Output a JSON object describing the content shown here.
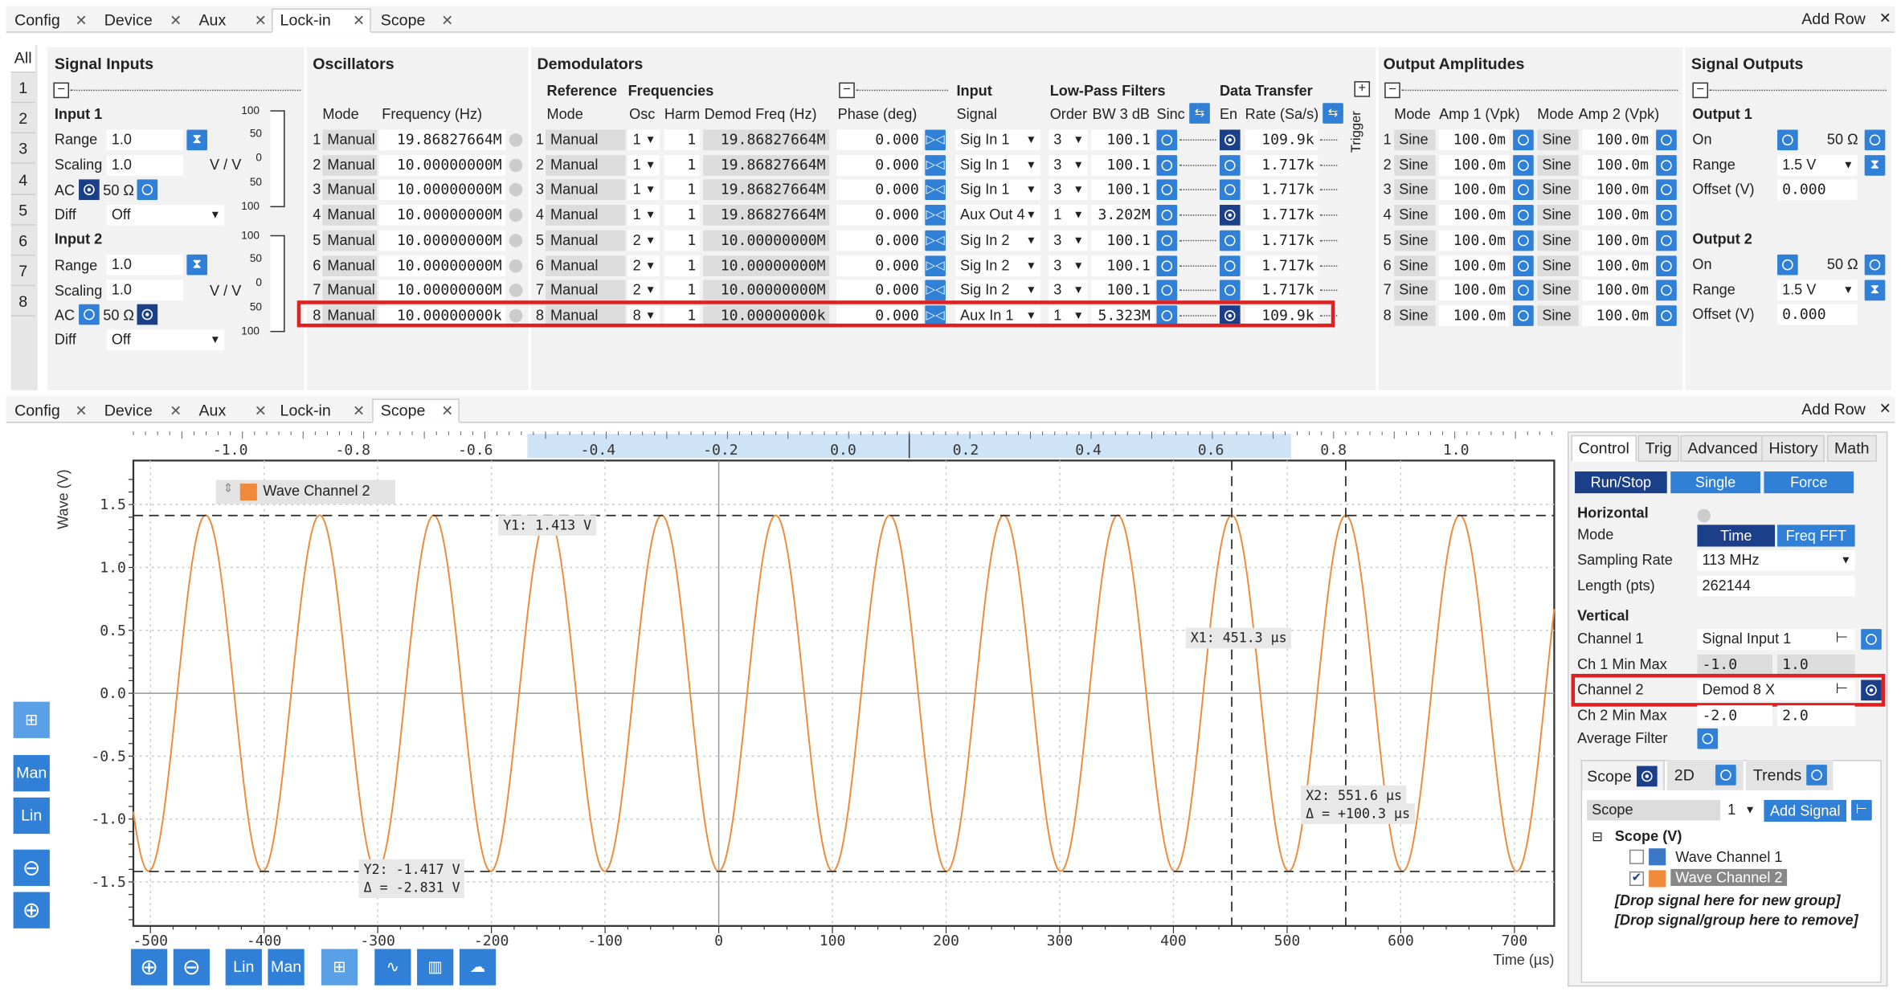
{
  "top_tabs": {
    "tabs": [
      "Config",
      "Device",
      "Aux",
      "Lock-in",
      "Scope"
    ],
    "active": "Lock-in",
    "add_row": "Add Row"
  },
  "side_tabs": [
    "All",
    "1",
    "2",
    "3",
    "4",
    "5",
    "6",
    "7",
    "8"
  ],
  "signal_inputs": {
    "title": "Signal Inputs",
    "input1": {
      "title": "Input 1",
      "range_label": "Range",
      "range": "1.0",
      "scaling_label": "Scaling",
      "scaling": "1.0",
      "scaling_unit": "V / V",
      "ac_label": "AC",
      "ohm": "50 Ω",
      "diff_label": "Diff",
      "diff": "Off"
    },
    "input2": {
      "title": "Input 2",
      "range_label": "Range",
      "range": "1.0",
      "scaling_label": "Scaling",
      "scaling": "1.0",
      "scaling_unit": "V / V",
      "ac_label": "AC",
      "ohm": "50 Ω",
      "diff_label": "Diff",
      "diff": "Off"
    },
    "meter_ticks": [
      "100",
      "50",
      "0",
      "50",
      "100"
    ]
  },
  "oscillators": {
    "title": "Oscillators",
    "col_mode": "Mode",
    "col_freq": "Frequency (Hz)",
    "rows": [
      {
        "n": "1",
        "mode": "Manual",
        "freq": "19.86827664M"
      },
      {
        "n": "2",
        "mode": "Manual",
        "freq": "10.00000000M"
      },
      {
        "n": "3",
        "mode": "Manual",
        "freq": "10.00000000M"
      },
      {
        "n": "4",
        "mode": "Manual",
        "freq": "10.00000000M"
      },
      {
        "n": "5",
        "mode": "Manual",
        "freq": "10.00000000M"
      },
      {
        "n": "6",
        "mode": "Manual",
        "freq": "10.00000000M"
      },
      {
        "n": "7",
        "mode": "Manual",
        "freq": "10.00000000M"
      },
      {
        "n": "8",
        "mode": "Manual",
        "freq": "10.00000000k"
      }
    ]
  },
  "demodulators": {
    "title": "Demodulators",
    "h_reference": "Reference",
    "h_frequencies": "Frequencies",
    "h_input": "Input",
    "h_lpf": "Low-Pass Filters",
    "h_dt": "Data Transfer",
    "c_mode": "Mode",
    "c_osc": "Osc",
    "c_harm": "Harm",
    "c_dfreq": "Demod Freq (Hz)",
    "c_phase": "Phase (deg)",
    "c_signal": "Signal",
    "c_order": "Order",
    "c_bw": "BW 3 dB",
    "c_sinc": "Sinc",
    "c_en": "En",
    "c_rate": "Rate (Sa/s)",
    "trigger": "Trigger",
    "rows": [
      {
        "n": "1",
        "mode": "Manual",
        "osc": "1",
        "harm": "1",
        "dfreq": "19.86827664M",
        "phase": "0.000",
        "signal": "Sig In 1",
        "order": "3",
        "bw": "100.1",
        "en": true,
        "rate": "109.9k"
      },
      {
        "n": "2",
        "mode": "Manual",
        "osc": "1",
        "harm": "1",
        "dfreq": "19.86827664M",
        "phase": "0.000",
        "signal": "Sig In 1",
        "order": "3",
        "bw": "100.1",
        "en": false,
        "rate": "1.717k"
      },
      {
        "n": "3",
        "mode": "Manual",
        "osc": "1",
        "harm": "1",
        "dfreq": "19.86827664M",
        "phase": "0.000",
        "signal": "Sig In 1",
        "order": "3",
        "bw": "100.1",
        "en": false,
        "rate": "1.717k"
      },
      {
        "n": "4",
        "mode": "Manual",
        "osc": "1",
        "harm": "1",
        "dfreq": "19.86827664M",
        "phase": "0.000",
        "signal": "Aux Out 4",
        "order": "1",
        "bw": "3.202M",
        "en": true,
        "rate": "1.717k"
      },
      {
        "n": "5",
        "mode": "Manual",
        "osc": "2",
        "harm": "1",
        "dfreq": "10.00000000M",
        "phase": "0.000",
        "signal": "Sig In 2",
        "order": "3",
        "bw": "100.1",
        "en": false,
        "rate": "1.717k"
      },
      {
        "n": "6",
        "mode": "Manual",
        "osc": "2",
        "harm": "1",
        "dfreq": "10.00000000M",
        "phase": "0.000",
        "signal": "Sig In 2",
        "order": "3",
        "bw": "100.1",
        "en": false,
        "rate": "1.717k"
      },
      {
        "n": "7",
        "mode": "Manual",
        "osc": "2",
        "harm": "1",
        "dfreq": "10.00000000M",
        "phase": "0.000",
        "signal": "Sig In 2",
        "order": "3",
        "bw": "100.1",
        "en": false,
        "rate": "1.717k"
      },
      {
        "n": "8",
        "mode": "Manual",
        "osc": "8",
        "harm": "1",
        "dfreq": "10.00000000k",
        "phase": "0.000",
        "signal": "Aux In 1",
        "order": "1",
        "bw": "5.323M",
        "en": true,
        "rate": "109.9k"
      }
    ]
  },
  "output_amplitudes": {
    "title": "Output Amplitudes",
    "c_mode": "Mode",
    "c_amp1": "Amp 1 (Vpk)",
    "c_amp2": "Amp 2 (Vpk)",
    "rows": [
      {
        "n": "1",
        "m1": "Sine",
        "a1": "100.0m",
        "m2": "Sine",
        "a2": "100.0m"
      },
      {
        "n": "2",
        "m1": "Sine",
        "a1": "100.0m",
        "m2": "Sine",
        "a2": "100.0m"
      },
      {
        "n": "3",
        "m1": "Sine",
        "a1": "100.0m",
        "m2": "Sine",
        "a2": "100.0m"
      },
      {
        "n": "4",
        "m1": "Sine",
        "a1": "100.0m",
        "m2": "Sine",
        "a2": "100.0m"
      },
      {
        "n": "5",
        "m1": "Sine",
        "a1": "100.0m",
        "m2": "Sine",
        "a2": "100.0m"
      },
      {
        "n": "6",
        "m1": "Sine",
        "a1": "100.0m",
        "m2": "Sine",
        "a2": "100.0m"
      },
      {
        "n": "7",
        "m1": "Sine",
        "a1": "100.0m",
        "m2": "Sine",
        "a2": "100.0m"
      },
      {
        "n": "8",
        "m1": "Sine",
        "a1": "100.0m",
        "m2": "Sine",
        "a2": "100.0m"
      }
    ]
  },
  "signal_outputs": {
    "title": "Signal Outputs",
    "out1": {
      "title": "Output 1",
      "on": "On",
      "ohm": "50 Ω",
      "range_label": "Range",
      "range": "1.5 V",
      "offset_label": "Offset (V)",
      "offset": "0.000"
    },
    "out2": {
      "title": "Output 2",
      "on": "On",
      "ohm": "50 Ω",
      "range_label": "Range",
      "range": "1.5 V",
      "offset_label": "Offset (V)",
      "offset": "0.000"
    }
  },
  "bottom_tabs": {
    "tabs": [
      "Config",
      "Device",
      "Aux",
      "Lock-in",
      "Scope"
    ],
    "active": "Scope",
    "add_row": "Add Row"
  },
  "scope": {
    "ylabel": "Wave (V)",
    "xlabel": "Time (µs)",
    "legend": "Wave Channel 2",
    "top_ticks": [
      "-1.0",
      "-0.8",
      "-0.6",
      "-0.4",
      "-0.2",
      "0.0",
      "0.2",
      "0.4",
      "0.6",
      "0.8",
      "1.0"
    ],
    "y1": "Y1: 1.413 V",
    "y2": "Y2: -1.417 V",
    "y2_delta": "Δ = -2.831 V",
    "x1": "X1: 451.3 µs",
    "x2": "X2: 551.6 µs",
    "x2_delta": "Δ = +100.3 µs",
    "tools": {
      "man": "Man",
      "lin": "Lin"
    }
  },
  "chart_data": {
    "type": "line",
    "xlabel": "Time (µs)",
    "ylabel": "Wave (V)",
    "xlim": [
      -515,
      735
    ],
    "ylim": [
      -1.85,
      1.85
    ],
    "x_ticks": [
      -500,
      -400,
      -300,
      -200,
      -100,
      0,
      100,
      200,
      300,
      400,
      500,
      600,
      700
    ],
    "y_ticks": [
      -1.5,
      -1.0,
      -0.5,
      0.0,
      0.5,
      1.0,
      1.5
    ],
    "series": [
      {
        "name": "Wave Channel 2",
        "color": "#f08a3a",
        "amplitude": 1.415,
        "period_us": 100.3,
        "peak_at_us": 451.3
      }
    ],
    "cursors": {
      "x1": 451.3,
      "x2": 551.6,
      "y1": 1.413,
      "y2": -1.417
    }
  },
  "control": {
    "tabs": [
      "Control",
      "Trig",
      "Advanced",
      "History",
      "Math"
    ],
    "run": "Run/Stop",
    "single": "Single",
    "force": "Force",
    "horizontal": "Horizontal",
    "mode_label": "Mode",
    "mode_time": "Time",
    "mode_fft": "Freq FFT",
    "srate_label": "Sampling Rate",
    "srate": "113 MHz",
    "length_label": "Length (pts)",
    "length": "262144",
    "vertical": "Vertical",
    "ch1_label": "Channel 1",
    "ch1": "Signal Input 1",
    "ch1mm_label": "Ch 1 Min Max",
    "ch1_min": "-1.0",
    "ch1_max": "1.0",
    "ch2_label": "Channel 2",
    "ch2": "Demod 8 X",
    "ch2mm_label": "Ch 2 Min Max",
    "ch2_min": "-2.0",
    "ch2_max": "2.0",
    "avg_label": "Average Filter",
    "sub_tabs": [
      "Scope",
      "2D",
      "Trends"
    ],
    "scope_label": "Scope",
    "scope_num": "1",
    "add_signal": "Add Signal",
    "tree_group": "Scope (V)",
    "tree_w1": "Wave Channel 1",
    "tree_w2": "Wave Channel 2",
    "drop1": "[Drop signal here for new group]",
    "drop2": "[Drop signal/group here to remove]"
  }
}
